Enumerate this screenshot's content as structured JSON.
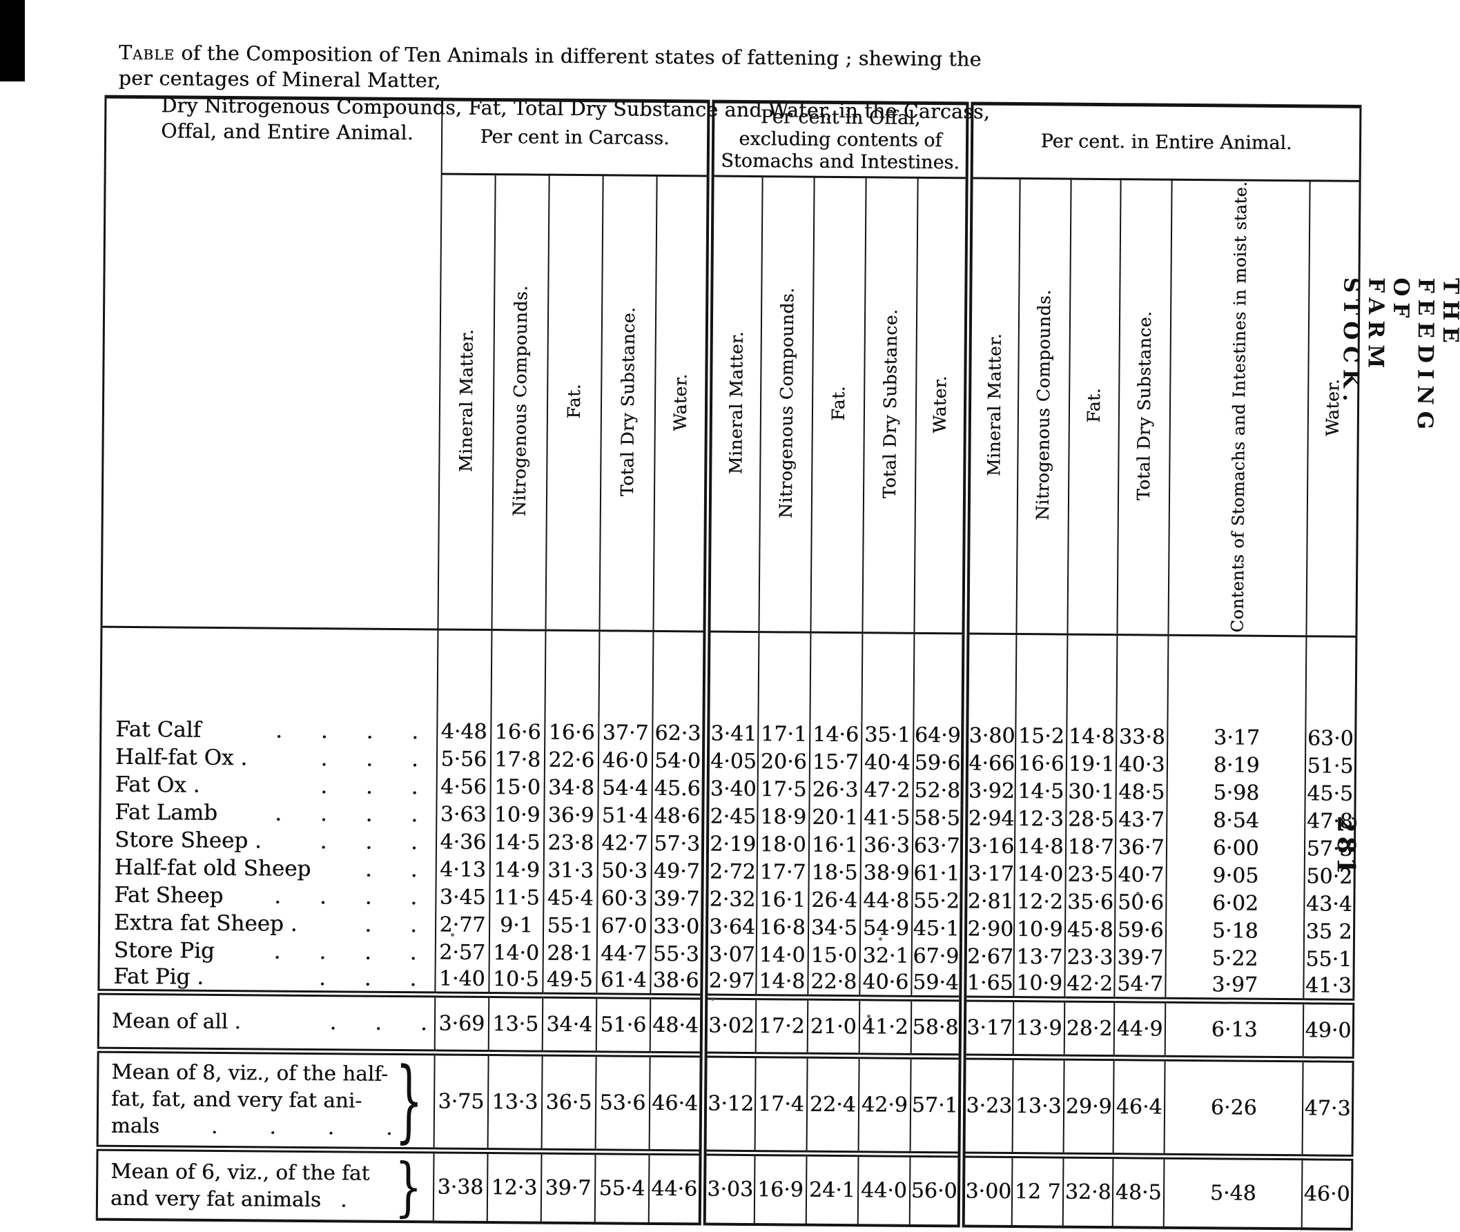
{
  "page": {
    "title": {
      "lead": "Table",
      "line1_rest": " of the Composition of Ten Animals in different states of fattening ; shewing the per centages of Mineral Matter,",
      "line2": "Dry Nitrogenous Compounds, Fat, Total Dry Substance and Water, in the Carcass, Offal, and Entire Animal."
    },
    "margin": {
      "running_head": "THE FEEDING OF FARM STOCK.",
      "page_number": "281"
    }
  },
  "table": {
    "groups": [
      {
        "label": "Per cent in Carcass.",
        "col_count": 5
      },
      {
        "label": "Per cent in Offal, excluding contents of Stomachs and Intestines.",
        "col_count": 5
      },
      {
        "label": "Per cent. in Entire Animal.",
        "col_count": 6
      }
    ],
    "columns": [
      {
        "label": "Mineral Matter."
      },
      {
        "label": "Nitrogenous Compounds."
      },
      {
        "label": "Fat."
      },
      {
        "label": "Total Dry Substance."
      },
      {
        "label": "Water."
      },
      {
        "label": "Mineral Matter."
      },
      {
        "label": "Nitrogenous Compounds."
      },
      {
        "label": "Fat."
      },
      {
        "label": "Total Dry Substance."
      },
      {
        "label": "Water."
      },
      {
        "label": "Mineral Matter."
      },
      {
        "label": "Nitrogenous Compounds."
      },
      {
        "label": "Fat."
      },
      {
        "label": "Total Dry Substance."
      },
      {
        "label": "Contents of Stomachs and Intestines in moist state."
      },
      {
        "label": "Water."
      }
    ],
    "animal_rows": [
      {
        "label": "Fat Calf",
        "dots": ". . . .",
        "values": [
          "4·48",
          "16·6",
          "16·6",
          "37·7",
          "62·3",
          "3·41",
          "17·1",
          "14·6",
          "35·1",
          "64·9",
          "3·80",
          "15·2",
          "14·8",
          "33·8",
          "3·17",
          "63·0"
        ]
      },
      {
        "label": "Half-fat Ox .",
        "dots": ". . .",
        "values": [
          "5·56",
          "17·8",
          "22·6",
          "46·0",
          "54·0",
          "4·05",
          "20·6",
          "15·7",
          "40·4",
          "59·6",
          "4·66",
          "16·6",
          "19·1",
          "40·3",
          "8·19",
          "51·5"
        ]
      },
      {
        "label": "Fat Ox .",
        "dots": ". . .",
        "values": [
          "4·56",
          "15·0",
          "34·8",
          "54·4",
          "45.6",
          "3·40",
          "17·5",
          "26·3",
          "47·2",
          "52·8",
          "3·92",
          "14·5",
          "30·1",
          "48·5",
          "5·98",
          "45·5"
        ]
      },
      {
        "label": "Fat Lamb",
        "dots": ". . . .",
        "values": [
          "3·63",
          "10·9",
          "36·9",
          "51·4",
          "48·6",
          "2·45",
          "18·9",
          "20·1",
          "41·5",
          "58·5",
          "2·94",
          "12·3",
          "28·5",
          "43·7",
          "8·54",
          "47·8"
        ]
      },
      {
        "label": "Store Sheep .",
        "dots": ". . .",
        "values": [
          "4·36",
          "14·5",
          "23·8",
          "42·7",
          "57·3",
          "2·19",
          "18·0",
          "16·1",
          "36·3",
          "63·7",
          "3·16",
          "14·8",
          "18·7",
          "36·7",
          "6·00",
          "57·3"
        ]
      },
      {
        "label": "Half-fat old Sheep",
        "dots": ". .",
        "values": [
          "4·13",
          "14·9",
          "31·3",
          "50·3",
          "49·7",
          "2·72",
          "17·7",
          "18·5",
          "38·9",
          "61·1",
          "3·17",
          "14·0",
          "23·5",
          "40·7",
          "9·05",
          "50·2"
        ]
      },
      {
        "label": "Fat Sheep",
        "dots": ". . . .",
        "values": [
          "3·45",
          "11·5",
          "45·4",
          "60·3",
          "39·7",
          "2·32",
          "16·1",
          "26·4",
          "44·8",
          "55·2",
          "2·81",
          "12·2",
          "35·6",
          "50·6",
          "6·02",
          "43·4"
        ]
      },
      {
        "label": "Extra fat Sheep .",
        "dots": ". .",
        "values": [
          "2·77",
          "9·1",
          "55·1",
          "67·0",
          "33·0",
          "3·64",
          "16·8",
          "34·5",
          "54·9",
          "45·1",
          "2·90",
          "10·9",
          "45·8",
          "59·6",
          "5·18",
          "35 2"
        ]
      },
      {
        "label": "Store Pig",
        "dots": ". . . .",
        "values": [
          "2·57",
          "14·0",
          "28·1",
          "44·7",
          "55·3",
          "3·07",
          "14·0",
          "15·0",
          "32·1",
          "67·9",
          "2·67",
          "13·7",
          "23·3",
          "39·7",
          "5·22",
          "55·1"
        ]
      },
      {
        "label": "Fat Pig .",
        "dots": ". . .",
        "values": [
          "1·40",
          "10·5",
          "49·5",
          "61·4",
          "38·6",
          "2·97",
          "14·8",
          "22·8",
          "40·6",
          "59·4",
          "1·65",
          "10·9",
          "42·2",
          "54·7",
          "3·97",
          "41·3"
        ]
      }
    ],
    "mean_rows": [
      {
        "label_lines": [
          "Mean of all ."
        ],
        "dots": ". . .",
        "brace": "",
        "values": [
          "3·69",
          "13·5",
          "34·4",
          "51·6",
          "48·4",
          "3·02",
          "17·2",
          "21·0",
          "41·2",
          "58·8",
          "3·17",
          "13·9",
          "28·2",
          "44·9",
          "6·13",
          "49·0"
        ]
      },
      {
        "label_lines": [
          "Mean of 8, viz., of the half-",
          "fat, fat, and very fat ani-",
          "mals        .        .        .        ."
        ],
        "dots": "",
        "brace": "}",
        "values": [
          "3·75",
          "13·3",
          "36·5",
          "53·6",
          "46·4",
          "3·12",
          "17·4",
          "22·4",
          "42·9",
          "57·1",
          "3·23",
          "13·3",
          "29·9",
          "46·4",
          "6·26",
          "47·3"
        ]
      },
      {
        "label_lines": [
          "Mean of 6, viz., of the fat",
          "and very fat animals   ."
        ],
        "dots": "",
        "brace": "}",
        "values": [
          "3·38",
          "12·3",
          "39·7",
          "55·4",
          "44·6",
          "3·03",
          "16·9",
          "24·1",
          "44·0",
          "56·0",
          "3·00",
          "12 7",
          "32·8",
          "48·5",
          "5·48",
          "46·0"
        ]
      }
    ]
  }
}
